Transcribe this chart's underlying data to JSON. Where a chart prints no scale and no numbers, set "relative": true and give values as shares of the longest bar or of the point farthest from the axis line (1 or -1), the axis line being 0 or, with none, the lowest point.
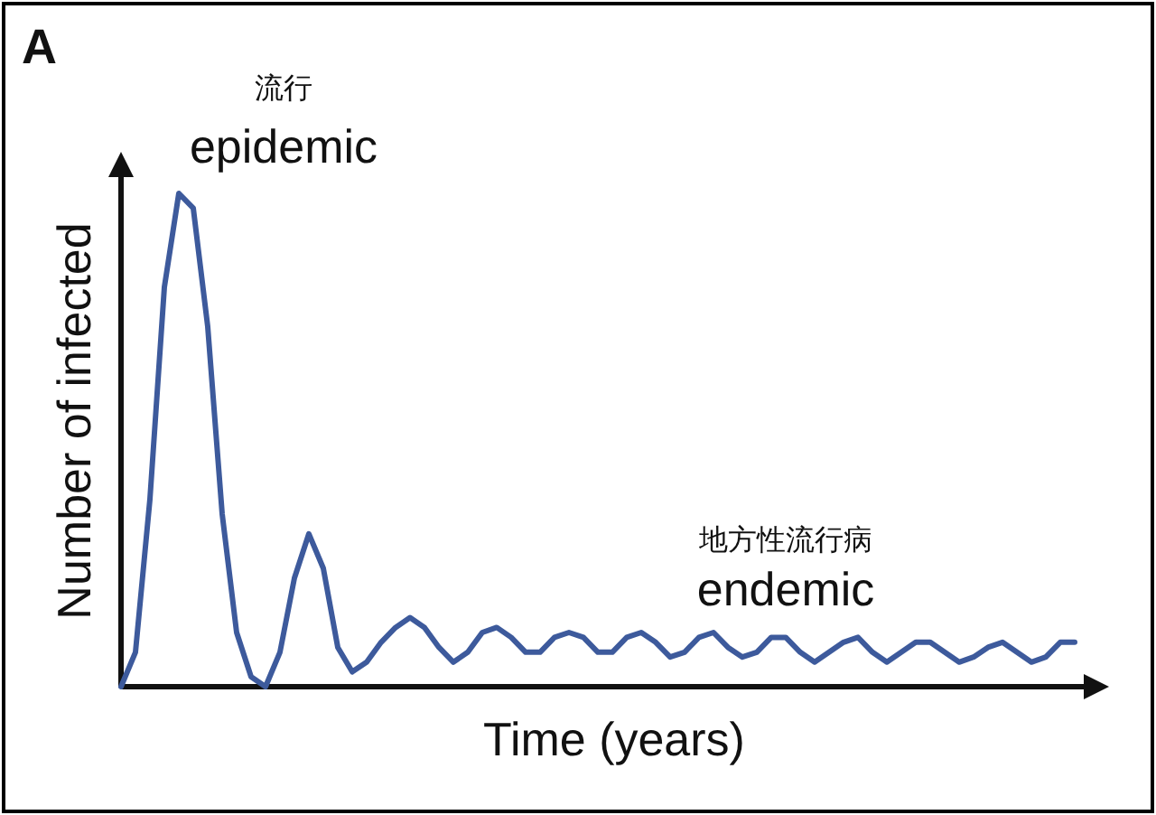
{
  "chart_data": {
    "type": "line",
    "relative": true,
    "xlabel": "Time (years)",
    "ylabel": "Number of infected",
    "annotations": [
      "A",
      "流行",
      "epidemic",
      "地方性流行病",
      "endemic"
    ],
    "categories": [
      null,
      null,
      null,
      null,
      null,
      null,
      null,
      null,
      null,
      null,
      null,
      null,
      null,
      null,
      null,
      null,
      null,
      null,
      null,
      null,
      null,
      null,
      null,
      null,
      null,
      null,
      null,
      null,
      null,
      null,
      null,
      null,
      null,
      null,
      null,
      null,
      null,
      null,
      null,
      null,
      null,
      null,
      null,
      null,
      null,
      null,
      null,
      null,
      null,
      null,
      null,
      null,
      null,
      null,
      null,
      null,
      null,
      null,
      null,
      null,
      null,
      null,
      null,
      null,
      null,
      null,
      null
    ],
    "series": [
      {
        "color": "#3d5a9c",
        "values": [
          0,
          0.07,
          0.38,
          0.81,
          1,
          0.97,
          0.73,
          0.35,
          0.11,
          0.02,
          0,
          0.07,
          0.22,
          0.31,
          0.24,
          0.08,
          0.03,
          0.05,
          0.09,
          0.12,
          0.14,
          0.12,
          0.08,
          0.05,
          0.07,
          0.11,
          0.12,
          0.1,
          0.07,
          0.07,
          0.1,
          0.11,
          0.1,
          0.07,
          0.07,
          0.1,
          0.11,
          0.09,
          0.06,
          0.07,
          0.1,
          0.11,
          0.08,
          0.06,
          0.07,
          0.1,
          0.1,
          0.07,
          0.05,
          0.07,
          0.09,
          0.1,
          0.07,
          0.05,
          0.07,
          0.09,
          0.09,
          0.07,
          0.05,
          0.06,
          0.08,
          0.09,
          0.07,
          0.05,
          0.06,
          0.09,
          0.09
        ]
      }
    ]
  }
}
